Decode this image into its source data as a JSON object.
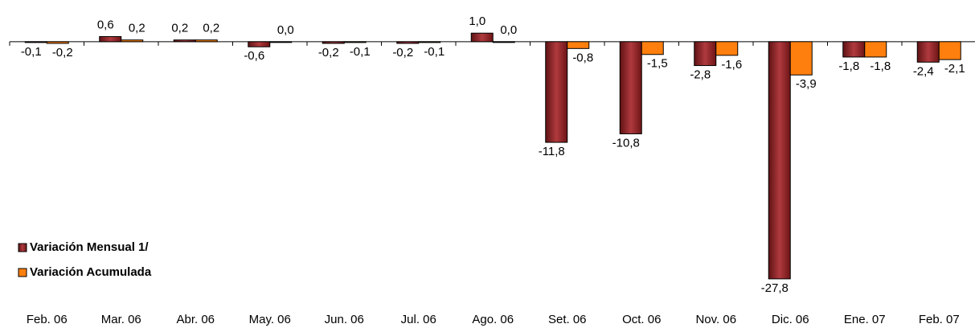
{
  "chart_data": {
    "type": "bar",
    "categories": [
      "Feb. 06",
      "Mar. 06",
      "Abr. 06",
      "May. 06",
      "Jun. 06",
      "Jul. 06",
      "Ago. 06",
      "Set. 06",
      "Oct. 06",
      "Nov. 06",
      "Dic. 06",
      "Ene. 07",
      "Feb. 07"
    ],
    "series": [
      {
        "name": "Variación Mensual 1/",
        "color": "#8e2426",
        "values": [
          -0.1,
          0.6,
          0.2,
          -0.6,
          -0.2,
          -0.2,
          1.0,
          -11.8,
          -10.8,
          -2.8,
          -27.8,
          -1.8,
          -2.4
        ],
        "value_labels": [
          "-0,1",
          "0,6",
          "0,2",
          "-0,6",
          "-0,2",
          "-0,2",
          "1,0",
          "-11,8",
          "-10,8",
          "-2,8",
          "-27,8",
          "-1,8",
          "-2,4"
        ]
      },
      {
        "name": "Variación Acumulada",
        "color": "#ff7f0e",
        "values": [
          -0.2,
          0.2,
          0.2,
          0.0,
          -0.1,
          -0.1,
          0.0,
          -0.8,
          -1.5,
          -1.6,
          -3.9,
          -1.8,
          -2.1
        ],
        "value_labels": [
          "-0,2",
          "0,2",
          "0,2",
          "0,0",
          "-0,1",
          "-0,1",
          "0,0",
          "-0,8",
          "-1,5",
          "-1,6",
          "-3,9",
          "-1,8",
          "-2,1"
        ]
      }
    ],
    "ylim": [
      -28,
      3
    ],
    "legend": "lower left"
  }
}
